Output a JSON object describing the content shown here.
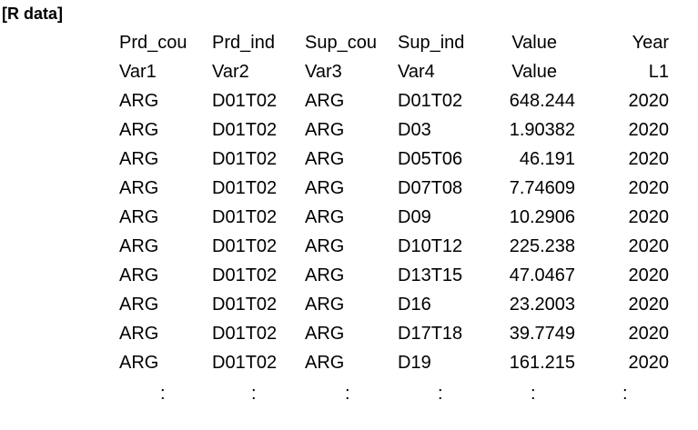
{
  "title": "[R data]",
  "header_row_1": [
    "Prd_cou",
    "Prd_ind",
    "Sup_cou",
    "Sup_ind",
    "Value",
    "Year"
  ],
  "header_row_2": [
    "Var1",
    "Var2",
    "Var3",
    "Var4",
    "Value",
    "L1"
  ],
  "rows": [
    [
      "ARG",
      "D01T02",
      "ARG",
      "D01T02",
      "648.244",
      "2020"
    ],
    [
      "ARG",
      "D01T02",
      "ARG",
      "D03",
      "1.90382",
      "2020"
    ],
    [
      "ARG",
      "D01T02",
      "ARG",
      "D05T06",
      "46.191",
      "2020"
    ],
    [
      "ARG",
      "D01T02",
      "ARG",
      "D07T08",
      "7.74609",
      "2020"
    ],
    [
      "ARG",
      "D01T02",
      "ARG",
      "D09",
      "10.2906",
      "2020"
    ],
    [
      "ARG",
      "D01T02",
      "ARG",
      "D10T12",
      "225.238",
      "2020"
    ],
    [
      "ARG",
      "D01T02",
      "ARG",
      "D13T15",
      "47.0467",
      "2020"
    ],
    [
      "ARG",
      "D01T02",
      "ARG",
      "D16",
      "23.2003",
      "2020"
    ],
    [
      "ARG",
      "D01T02",
      "ARG",
      "D17T18",
      "39.7749",
      "2020"
    ],
    [
      "ARG",
      "D01T02",
      "ARG",
      "D19",
      "161.215",
      "2020"
    ]
  ],
  "continuation": [
    ":",
    ":",
    ":",
    ":",
    ":",
    ":"
  ]
}
